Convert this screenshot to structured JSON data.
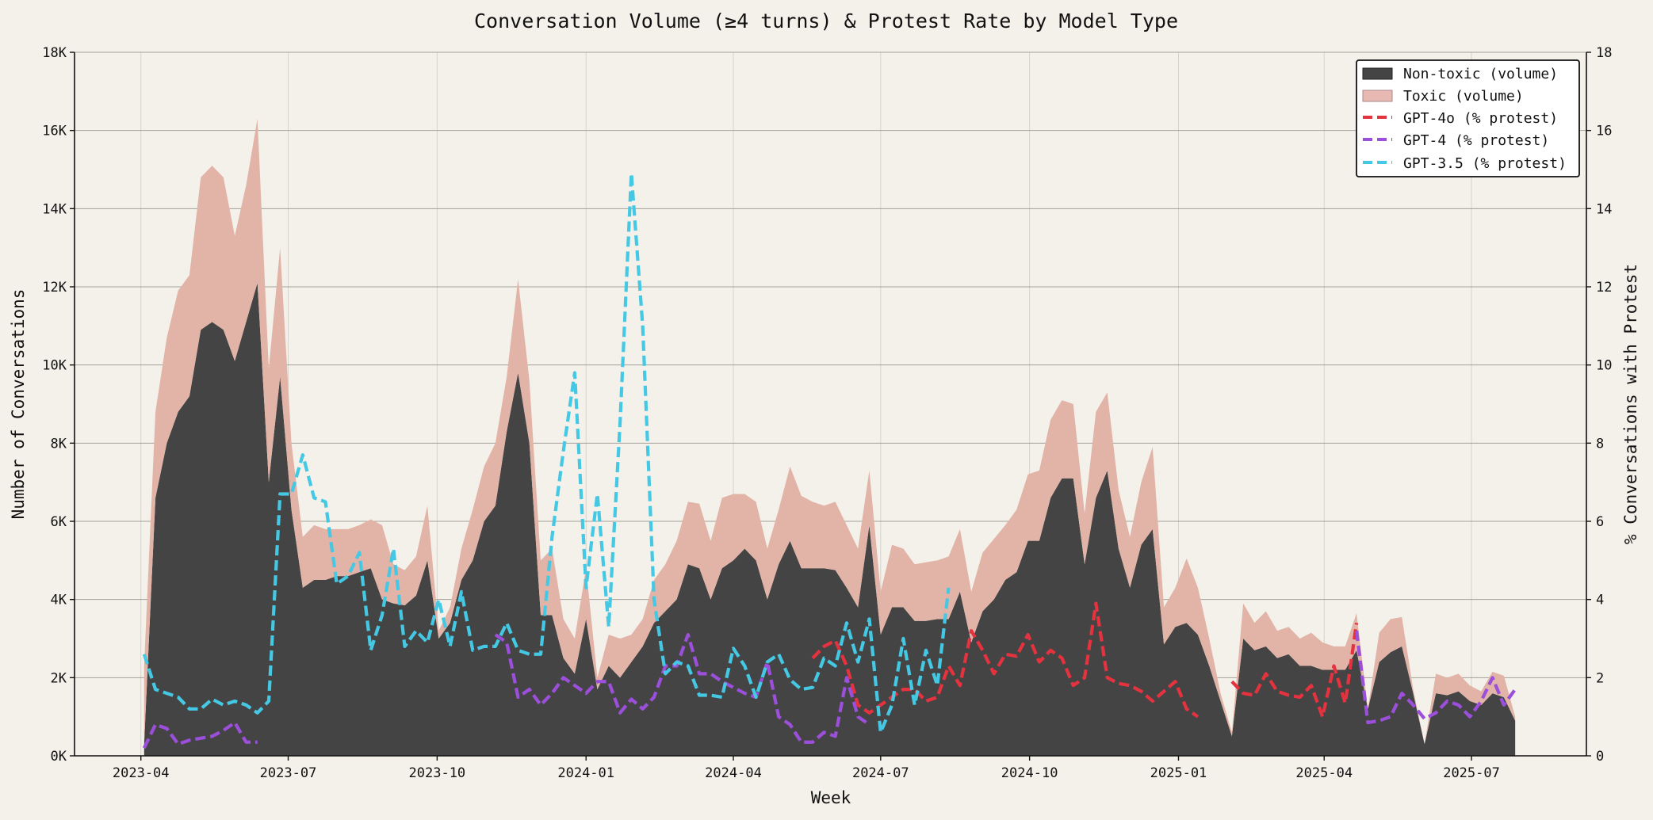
{
  "chart_data": {
    "type": "area",
    "title": "Conversation Volume (≥4 turns) & Protest Rate by Model Type",
    "xlabel": "Week",
    "ylabel": "Number of Conversations",
    "y2label": "% Conversations with Protest",
    "xlim": [
      "2023-02-19",
      "2025-09-10"
    ],
    "ylim": [
      0,
      18000
    ],
    "y2lim": [
      0,
      18
    ],
    "grid": "horizontal major, faint vertical",
    "legend_placement": "top-right",
    "x_ticks": [
      "2023-04-01",
      "2023-07-01",
      "2023-10-01",
      "2024-01-01",
      "2024-04-01",
      "2024-07-01",
      "2024-10-01",
      "2025-01-01",
      "2025-04-01",
      "2025-07-01"
    ],
    "x_tick_labels": [
      "2023-04",
      "2023-07",
      "2023-10",
      "2024-01",
      "2024-04",
      "2024-07",
      "2024-10",
      "2025-01",
      "2025-04",
      "2025-07"
    ],
    "y_ticks": [
      0,
      2000,
      4000,
      6000,
      8000,
      10000,
      12000,
      14000,
      16000,
      18000
    ],
    "y_tick_labels": [
      "0K",
      "2K",
      "4K",
      "6K",
      "8K",
      "10K",
      "12K",
      "14K",
      "16K",
      "18K"
    ],
    "y2_ticks": [
      0,
      2,
      4,
      6,
      8,
      10,
      12,
      14,
      16,
      18
    ],
    "y2_tick_labels": [
      "0",
      "2",
      "4",
      "6",
      "8",
      "10",
      "12",
      "14",
      "16",
      "18"
    ],
    "weeks": [
      "2023-04-03",
      "2023-04-10",
      "2023-04-17",
      "2023-04-24",
      "2023-05-01",
      "2023-05-08",
      "2023-05-15",
      "2023-05-22",
      "2023-05-29",
      "2023-06-05",
      "2023-06-12",
      "2023-06-19",
      "2023-06-26",
      "2023-07-03",
      "2023-07-10",
      "2023-07-17",
      "2023-07-24",
      "2023-07-31",
      "2023-08-07",
      "2023-08-14",
      "2023-08-21",
      "2023-08-28",
      "2023-09-04",
      "2023-09-11",
      "2023-09-18",
      "2023-09-25",
      "2023-10-02",
      "2023-10-09",
      "2023-10-16",
      "2023-10-23",
      "2023-10-30",
      "2023-11-06",
      "2023-11-13",
      "2023-11-20",
      "2023-11-27",
      "2023-12-04",
      "2023-12-11",
      "2023-12-18",
      "2023-12-25",
      "2024-01-01",
      "2024-01-08",
      "2024-01-15",
      "2024-01-22",
      "2024-01-29",
      "2024-02-05",
      "2024-02-12",
      "2024-02-19",
      "2024-02-26",
      "2024-03-04",
      "2024-03-11",
      "2024-03-18",
      "2024-03-25",
      "2024-04-01",
      "2024-04-08",
      "2024-04-15",
      "2024-04-22",
      "2024-04-29",
      "2024-05-06",
      "2024-05-13",
      "2024-05-20",
      "2024-05-27",
      "2024-06-03",
      "2024-06-10",
      "2024-06-17",
      "2024-06-24",
      "2024-07-01",
      "2024-07-08",
      "2024-07-15",
      "2024-07-22",
      "2024-07-29",
      "2024-08-05",
      "2024-08-12",
      "2024-08-19",
      "2024-08-26",
      "2024-09-02",
      "2024-09-09",
      "2024-09-16",
      "2024-09-23",
      "2024-09-30",
      "2024-10-07",
      "2024-10-14",
      "2024-10-21",
      "2024-10-28",
      "2024-11-04",
      "2024-11-11",
      "2024-11-18",
      "2024-11-25",
      "2024-12-02",
      "2024-12-09",
      "2024-12-16",
      "2024-12-23",
      "2024-12-30",
      "2025-01-06",
      "2025-01-13",
      "2025-01-20",
      "2025-01-27",
      "2025-02-03",
      "2025-02-10",
      "2025-02-17",
      "2025-02-24",
      "2025-03-03",
      "2025-03-10",
      "2025-03-17",
      "2025-03-24",
      "2025-03-31",
      "2025-04-07",
      "2025-04-14",
      "2025-04-21",
      "2025-04-28",
      "2025-05-05",
      "2025-05-12",
      "2025-05-19",
      "2025-05-26",
      "2025-06-02",
      "2025-06-09",
      "2025-06-16",
      "2025-06-23",
      "2025-06-30",
      "2025-07-07",
      "2025-07-14",
      "2025-07-21",
      "2025-07-28"
    ],
    "volume_series": [
      {
        "name": "Non-toxic (volume)",
        "color": "#444444",
        "values": [
          300,
          6600,
          8000,
          8800,
          9200,
          10900,
          11100,
          10900,
          10100,
          11100,
          12100,
          7000,
          9700,
          6300,
          4300,
          4500,
          4500,
          4600,
          4600,
          4700,
          4800,
          4000,
          3900,
          3850,
          4100,
          5000,
          3000,
          3400,
          4500,
          5000,
          6000,
          6400,
          8300,
          9800,
          8000,
          3600,
          3600,
          2500,
          2100,
          3500,
          1700,
          2300,
          2000,
          2400,
          2800,
          3400,
          3700,
          4000,
          4900,
          4800,
          4000,
          4800,
          5000,
          5300,
          5000,
          4000,
          4900,
          5500,
          4800,
          4800,
          4800,
          4750,
          4300,
          3800,
          5900,
          3100,
          3800,
          3800,
          3450,
          3450,
          3500,
          3500,
          4200,
          2900,
          3700,
          4000,
          4500,
          4700,
          5500,
          5500,
          6600,
          7100,
          7100,
          4900,
          6600,
          7300,
          5300,
          4300,
          5400,
          5800,
          2850,
          3300,
          3400,
          3100,
          2300,
          1400,
          500,
          3000,
          2700,
          2800,
          2500,
          2600,
          2300,
          2300,
          2200,
          2200,
          2200,
          2700,
          1200,
          2400,
          2650,
          2800,
          1600,
          300,
          1600,
          1550,
          1650,
          1400,
          1300,
          1600,
          1500,
          900
        ]
      },
      {
        "name": "Toxic (volume)",
        "color": "#e2b3a7",
        "values": [
          2000,
          2200,
          2700,
          3100,
          3100,
          3900,
          4000,
          3900,
          3200,
          3500,
          4200,
          2900,
          3300,
          1700,
          1300,
          1400,
          1300,
          1200,
          1200,
          1200,
          1250,
          1900,
          1000,
          900,
          1000,
          1400,
          200,
          400,
          800,
          1300,
          1400,
          1600,
          1400,
          2400,
          1600,
          1400,
          1700,
          1000,
          900,
          1300,
          300,
          800,
          1000,
          700,
          700,
          1100,
          1200,
          1500,
          1600,
          1650,
          1500,
          1800,
          1700,
          1400,
          1500,
          1300,
          1400,
          1900,
          1850,
          1700,
          1600,
          1750,
          1600,
          1500,
          1400,
          1100,
          1600,
          1500,
          1450,
          1500,
          1500,
          1600,
          1600,
          1300,
          1500,
          1550,
          1400,
          1600,
          1700,
          1800,
          2000,
          2000,
          1900,
          1300,
          2200,
          2000,
          1500,
          1300,
          1600,
          2100,
          950,
          1000,
          1650,
          1200,
          700,
          200,
          100,
          900,
          700,
          900,
          700,
          700,
          700,
          850,
          700,
          600,
          600,
          950,
          0,
          750,
          850,
          750,
          100,
          0,
          500,
          450,
          450,
          400,
          350,
          550,
          550,
          100
        ]
      }
    ],
    "protest_series": [
      {
        "name": "GPT-4o (% protest)",
        "color": "#e5323f",
        "segments": [
          {
            "start": "2024-05-20",
            "values": [
              2.5,
              2.8,
              2.95,
              2.3,
              1.3,
              1.1,
              1.3,
              1.5,
              1.7,
              1.7,
              1.4,
              1.5,
              2.3,
              1.8,
              3.2,
              2.7,
              2.1,
              2.6,
              2.55,
              3.1,
              2.4,
              2.7,
              2.5,
              1.8,
              2.0,
              3.9,
              2.0,
              1.85,
              1.8,
              1.65,
              1.4,
              1.65,
              1.9,
              1.2,
              1.0
            ]
          },
          {
            "start": "2025-02-03",
            "values": [
              1.9,
              1.6,
              1.55,
              2.1,
              1.65,
              1.55,
              1.5,
              1.8,
              1.0,
              2.3,
              1.35,
              3.4
            ]
          }
        ]
      },
      {
        "name": "GPT-4 (% protest)",
        "color": "#9b4fdb",
        "segments": [
          {
            "start": "2023-04-03",
            "values": [
              0.2,
              0.8,
              0.7,
              0.3,
              0.4,
              0.45,
              0.5,
              0.65,
              0.85,
              0.35,
              0.35
            ]
          },
          {
            "start": "2023-11-06",
            "values": [
              3.1,
              2.9,
              1.5,
              1.7,
              1.3,
              1.6,
              2.0,
              1.8,
              1.6,
              1.9,
              1.9,
              1.1,
              1.45,
              1.2,
              1.5,
              2.3,
              2.3,
              3.1,
              2.1,
              2.1,
              1.9,
              1.75,
              1.6,
              1.5,
              2.4,
              1.0,
              0.8,
              0.35,
              0.35,
              0.6,
              0.5,
              2.0,
              1.0,
              0.8
            ]
          },
          {
            "start": "2025-04-21",
            "values": [
              3.2,
              0.85,
              0.9,
              1.0,
              1.6,
              1.3,
              0.95,
              1.1,
              1.4,
              1.3,
              1.0,
              1.4,
              2.0,
              1.3,
              1.7
            ]
          }
        ]
      },
      {
        "name": "GPT-3.5 (% protest)",
        "color": "#45c8e4",
        "segments": [
          {
            "start": "2023-04-03",
            "values": [
              2.6,
              1.7,
              1.6,
              1.5,
              1.2,
              1.2,
              1.45,
              1.3,
              1.4,
              1.3,
              1.1,
              1.4,
              6.7,
              6.7,
              7.7,
              6.6,
              6.5,
              4.4,
              4.6,
              5.2,
              2.7,
              3.6,
              5.3,
              2.8,
              3.2,
              2.9,
              4.0,
              2.8,
              4.2,
              2.7,
              2.8,
              2.8,
              3.4,
              2.7,
              2.6,
              2.6,
              5.6,
              7.8,
              9.8,
              4.3,
              6.7,
              3.3,
              8.5,
              14.9,
              11.0,
              4.0,
              2.1,
              2.4,
              2.3,
              1.55,
              1.55,
              1.5,
              2.75,
              2.3,
              1.5,
              2.4,
              2.6,
              1.95,
              1.7,
              1.75,
              2.5,
              2.3,
              3.4,
              2.4,
              3.5,
              0.6,
              1.3,
              3.0,
              1.3,
              2.7,
              1.8,
              4.3
            ]
          }
        ]
      }
    ]
  }
}
